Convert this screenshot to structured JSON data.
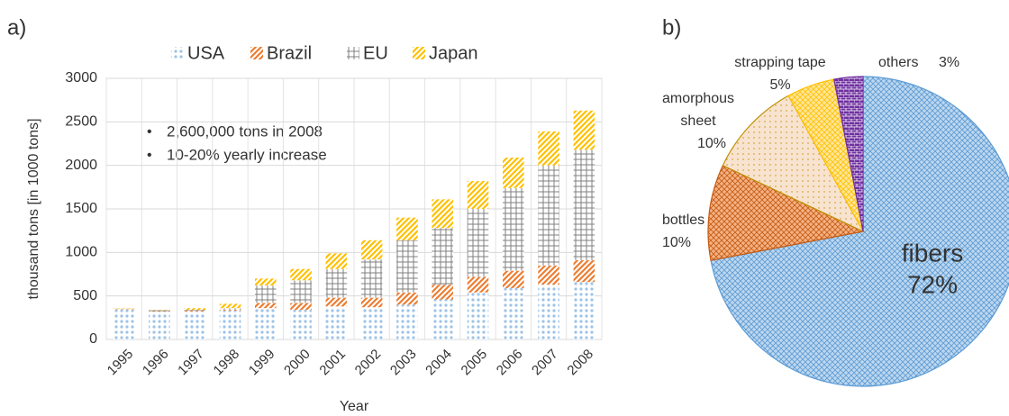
{
  "chart_data": [
    {
      "type": "bar",
      "panel": "a)",
      "stacked": true,
      "categories": [
        "1995",
        "1996",
        "1997",
        "1998",
        "1999",
        "2000",
        "2001",
        "2002",
        "2003",
        "2004",
        "2005",
        "2006",
        "2007",
        "2008"
      ],
      "series": [
        {
          "name": "USA",
          "color": "#9dc3e6",
          "values": [
            340,
            320,
            320,
            330,
            360,
            340,
            380,
            370,
            400,
            460,
            540,
            590,
            630,
            660
          ]
        },
        {
          "name": "Brazil",
          "color": "#ed7d31",
          "values": [
            5,
            5,
            10,
            10,
            60,
            80,
            100,
            110,
            140,
            170,
            180,
            200,
            220,
            250
          ]
        },
        {
          "name": "EU",
          "color": "#7f7f7f",
          "values": [
            10,
            10,
            10,
            20,
            200,
            260,
            330,
            440,
            600,
            650,
            780,
            950,
            1150,
            1270
          ]
        },
        {
          "name": "Japan",
          "color": "#ffc000",
          "values": [
            5,
            5,
            20,
            50,
            80,
            130,
            180,
            220,
            260,
            330,
            320,
            350,
            390,
            450
          ]
        }
      ],
      "ylim": [
        0,
        3000
      ],
      "yticks": [
        0,
        500,
        1000,
        1500,
        2000,
        2500,
        3000
      ],
      "grid": true,
      "xlabel": "Year",
      "ylabel": "thousand tons [in 1000 tons]",
      "annotations": [
        "2,600,000 tons in 2008",
        "10-20% yearly increase"
      ],
      "legend": "top"
    },
    {
      "type": "pie",
      "panel": "b)",
      "categories": [
        "fibers",
        "bottles",
        "amorphous sheet",
        "strapping tape",
        "others"
      ],
      "values": [
        72,
        10,
        10,
        5,
        3
      ],
      "value_labels": [
        "72%",
        "10%",
        "10%",
        "5%",
        "3%"
      ],
      "colors": [
        "#bdd7ee",
        "#f4b183",
        "#f8e3d0",
        "#ffe699",
        "#7030a0"
      ]
    }
  ]
}
